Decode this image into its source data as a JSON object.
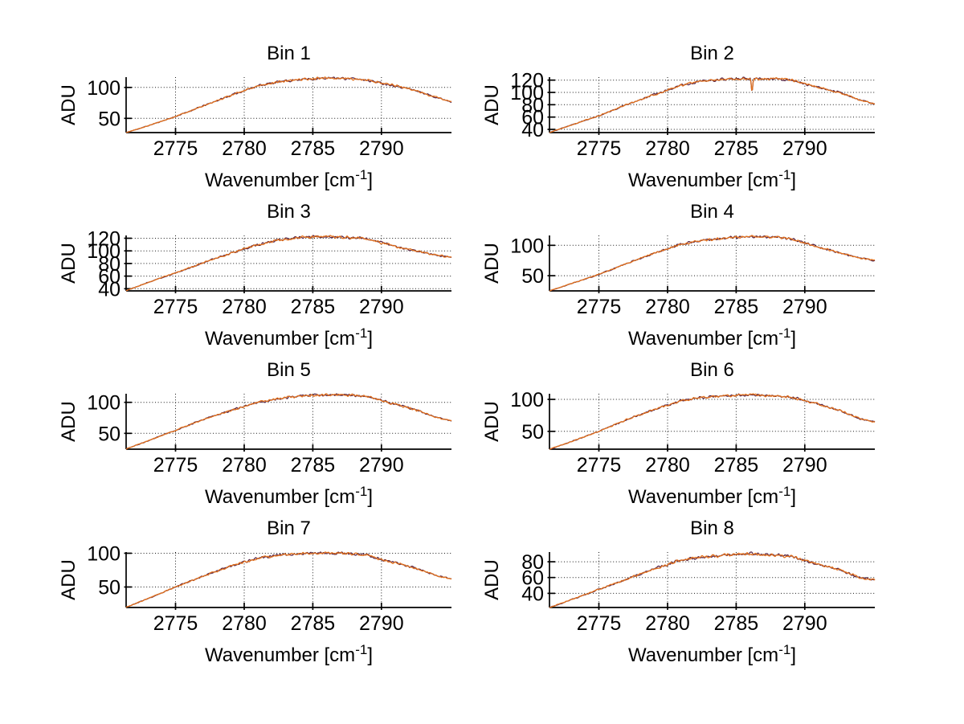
{
  "chart_data": {
    "type": "line",
    "layout": "4x2-grid",
    "grid": "dotted",
    "legend": "none",
    "ylabel": "ADU",
    "xlabel_pre": "Wavenumber [cm",
    "xlabel_sup": "-1",
    "xlabel_post": "]",
    "xlim": [
      2771.4,
      2795.1
    ],
    "xticks": [
      2775,
      2780,
      2785,
      2790
    ],
    "x_anchors": [
      2771.4,
      2773,
      2775,
      2777,
      2779,
      2781,
      2782.5,
      2784,
      2785,
      2786,
      2787,
      2788,
      2789,
      2790,
      2791,
      2792.5,
      2794,
      2795.1
    ],
    "colors": {
      "line_front": "#e2711d",
      "line_back": "#5a2747",
      "axis": "#000000",
      "grid": "#000000",
      "background": "#ffffff",
      "text": "#000000"
    },
    "noise": {
      "base": 0.6,
      "span": 2.2
    },
    "bins": [
      {
        "title": "Bin 1",
        "yticks": [
          50,
          100
        ],
        "values": [
          27,
          38,
          53,
          70,
          87,
          103,
          109,
          113,
          114,
          115,
          115,
          114,
          112,
          107,
          103,
          95,
          84,
          77
        ]
      },
      {
        "title": "Bin 2",
        "yticks": [
          40,
          60,
          80,
          100,
          120
        ],
        "values": [
          35,
          47,
          62,
          80,
          96,
          112,
          118,
          121,
          122,
          123,
          122,
          122,
          120,
          114,
          108,
          100,
          88,
          81
        ],
        "spike": {
          "x": 2786.15,
          "depth": 22,
          "width": 0.07
        }
      },
      {
        "title": "Bin 3",
        "yticks": [
          40,
          60,
          80,
          100,
          120
        ],
        "values": [
          37,
          50,
          65,
          81,
          96,
          110,
          117,
          121,
          122,
          123,
          122,
          121,
          119,
          113,
          107,
          100,
          93,
          90
        ]
      },
      {
        "title": "Bin 4",
        "yticks": [
          50,
          100
        ],
        "values": [
          25,
          37,
          52,
          70,
          87,
          102,
          108,
          112,
          113,
          115,
          114,
          113,
          111,
          104,
          97,
          88,
          79,
          75
        ]
      },
      {
        "title": "Bin 5",
        "yticks": [
          50,
          100
        ],
        "values": [
          25,
          38,
          55,
          72,
          87,
          100,
          106,
          110,
          111,
          112,
          112,
          111,
          109,
          103,
          97,
          88,
          76,
          70
        ]
      },
      {
        "title": "Bin 6",
        "yticks": [
          50,
          100
        ],
        "values": [
          22,
          34,
          50,
          68,
          84,
          98,
          103,
          105,
          106,
          107,
          106,
          105,
          103,
          98,
          92,
          83,
          70,
          65
        ]
      },
      {
        "title": "Bin 7",
        "yticks": [
          50,
          100
        ],
        "values": [
          20,
          33,
          50,
          66,
          81,
          93,
          97,
          99,
          100,
          100,
          100,
          99,
          97,
          91,
          86,
          78,
          67,
          62
        ]
      },
      {
        "title": "Bin 8",
        "yticks": [
          40,
          60,
          80
        ],
        "values": [
          22,
          32,
          45,
          58,
          71,
          82,
          86,
          88,
          89,
          90,
          89,
          88,
          87,
          82,
          77,
          70,
          60,
          57
        ]
      }
    ]
  }
}
